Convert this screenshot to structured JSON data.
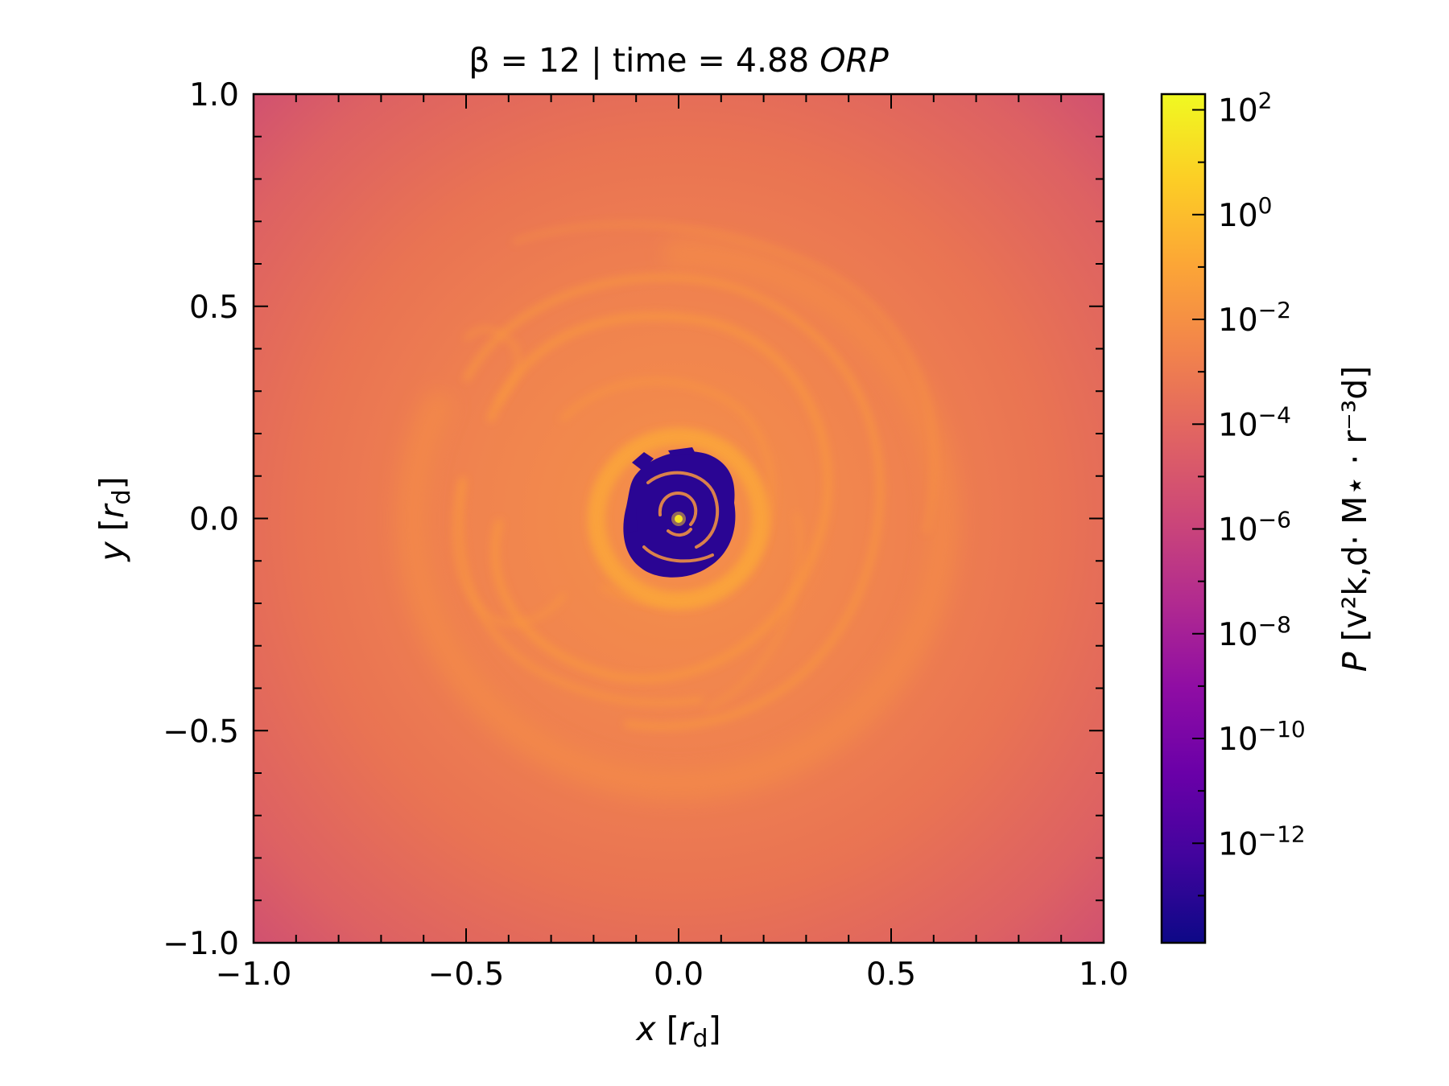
{
  "chart_data": {
    "type": "heatmap",
    "title": {
      "prefix": "β = 12 | time = 4.88 ",
      "unit": "ORP"
    },
    "xlabel": {
      "var": "x",
      "unit_open": " [",
      "unit_var": "r",
      "unit_sub": "d",
      "unit_close": "]"
    },
    "ylabel": {
      "var": "y",
      "unit_open": " [",
      "unit_var": "r",
      "unit_sub": "d",
      "unit_close": "]"
    },
    "xlim": [
      -1.0,
      1.0
    ],
    "ylim": [
      -1.0,
      1.0
    ],
    "x_ticks": [
      -1.0,
      -0.5,
      0.0,
      0.5,
      1.0
    ],
    "y_ticks": [
      -1.0,
      -0.5,
      0.0,
      0.5,
      1.0
    ],
    "x_tick_labels": [
      "−1.0",
      "−0.5",
      "0.0",
      "0.5",
      "1.0"
    ],
    "y_tick_labels": [
      "−1.0",
      "−0.5",
      "0.0",
      "0.5",
      "1.0"
    ],
    "colorbar": {
      "label": {
        "var": "P",
        "text": " [v²k,d· M⋆ · r⁻³d]"
      },
      "scale": "log",
      "range_exponent": [
        -13.9,
        2.3
      ],
      "colormap": "plasma",
      "ticks": [
        {
          "exp": 2,
          "base": "10",
          "sup": "2"
        },
        {
          "exp": 0,
          "base": "10",
          "sup": "0"
        },
        {
          "exp": -2,
          "base": "10",
          "sup": "−2"
        },
        {
          "exp": -4,
          "base": "10",
          "sup": "−4"
        },
        {
          "exp": -6,
          "base": "10",
          "sup": "−6"
        },
        {
          "exp": -8,
          "base": "10",
          "sup": "−8"
        },
        {
          "exp": -10,
          "base": "10",
          "sup": "−10"
        },
        {
          "exp": -12,
          "base": "10",
          "sup": "−12"
        }
      ]
    },
    "colors": {
      "outer": "#d3546f",
      "disk": "#ec7853",
      "spiral": "#f9973f",
      "cavity": "#2a0593",
      "core": "#f0f921"
    }
  }
}
